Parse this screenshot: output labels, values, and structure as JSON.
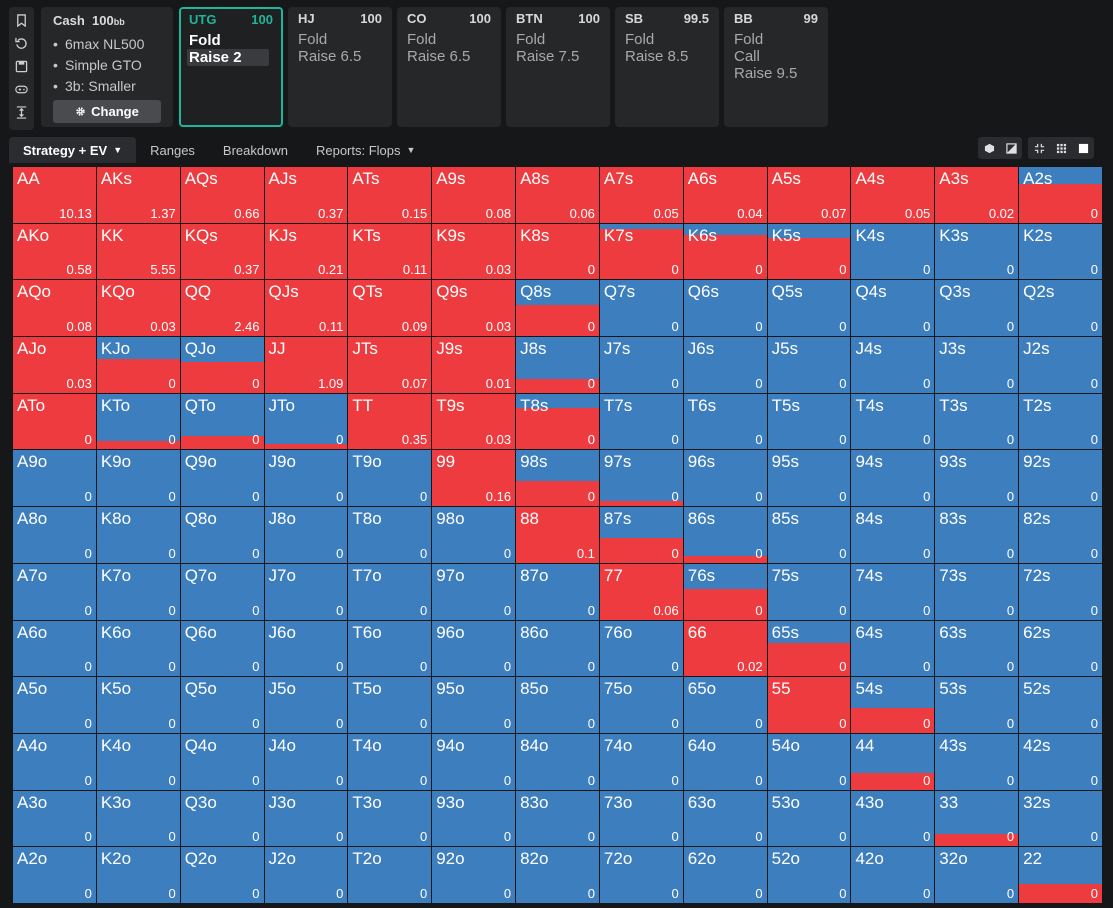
{
  "config": {
    "game": "Cash",
    "stack": "100",
    "stack_unit": "bb",
    "items": [
      "6max NL500",
      "Simple GTO",
      "3b: Smaller"
    ],
    "change_label": "Change"
  },
  "positions": [
    {
      "name": "UTG",
      "stack": "100",
      "actions": [
        "Fold",
        "Raise 2"
      ],
      "active": true,
      "selected": 1
    },
    {
      "name": "HJ",
      "stack": "100",
      "actions": [
        "Fold",
        "Raise 6.5"
      ]
    },
    {
      "name": "CO",
      "stack": "100",
      "actions": [
        "Fold",
        "Raise 6.5"
      ]
    },
    {
      "name": "BTN",
      "stack": "100",
      "actions": [
        "Fold",
        "Raise 7.5"
      ]
    },
    {
      "name": "SB",
      "stack": "99.5",
      "actions": [
        "Fold",
        "Raise 8.5"
      ]
    },
    {
      "name": "BB",
      "stack": "99",
      "actions": [
        "Fold",
        "Call",
        "Raise 9.5"
      ]
    }
  ],
  "tabs": [
    {
      "label": "Strategy + EV",
      "active": true,
      "dropdown": true
    },
    {
      "label": "Ranges"
    },
    {
      "label": "Breakdown"
    },
    {
      "label": "Reports: Flops",
      "dropdown": true
    }
  ],
  "colors": {
    "raise": "#ee3b3f",
    "fold": "#3d7ebf",
    "accent": "#1fb59a"
  },
  "grid": {
    "hands": [
      [
        "AA",
        "AKs",
        "AQs",
        "AJs",
        "ATs",
        "A9s",
        "A8s",
        "A7s",
        "A6s",
        "A5s",
        "A4s",
        "A3s",
        "A2s"
      ],
      [
        "AKo",
        "KK",
        "KQs",
        "KJs",
        "KTs",
        "K9s",
        "K8s",
        "K7s",
        "K6s",
        "K5s",
        "K4s",
        "K3s",
        "K2s"
      ],
      [
        "AQo",
        "KQo",
        "QQ",
        "QJs",
        "QTs",
        "Q9s",
        "Q8s",
        "Q7s",
        "Q6s",
        "Q5s",
        "Q4s",
        "Q3s",
        "Q2s"
      ],
      [
        "AJo",
        "KJo",
        "QJo",
        "JJ",
        "JTs",
        "J9s",
        "J8s",
        "J7s",
        "J6s",
        "J5s",
        "J4s",
        "J3s",
        "J2s"
      ],
      [
        "ATo",
        "KTo",
        "QTo",
        "JTo",
        "TT",
        "T9s",
        "T8s",
        "T7s",
        "T6s",
        "T5s",
        "T4s",
        "T3s",
        "T2s"
      ],
      [
        "A9o",
        "K9o",
        "Q9o",
        "J9o",
        "T9o",
        "99",
        "98s",
        "97s",
        "96s",
        "95s",
        "94s",
        "93s",
        "92s"
      ],
      [
        "A8o",
        "K8o",
        "Q8o",
        "J8o",
        "T8o",
        "98o",
        "88",
        "87s",
        "86s",
        "85s",
        "84s",
        "83s",
        "82s"
      ],
      [
        "A7o",
        "K7o",
        "Q7o",
        "J7o",
        "T7o",
        "97o",
        "87o",
        "77",
        "76s",
        "75s",
        "74s",
        "73s",
        "72s"
      ],
      [
        "A6o",
        "K6o",
        "Q6o",
        "J6o",
        "T6o",
        "96o",
        "86o",
        "76o",
        "66",
        "65s",
        "64s",
        "63s",
        "62s"
      ],
      [
        "A5o",
        "K5o",
        "Q5o",
        "J5o",
        "T5o",
        "95o",
        "85o",
        "75o",
        "65o",
        "55",
        "54s",
        "53s",
        "52s"
      ],
      [
        "A4o",
        "K4o",
        "Q4o",
        "J4o",
        "T4o",
        "94o",
        "84o",
        "74o",
        "64o",
        "54o",
        "44",
        "43s",
        "42s"
      ],
      [
        "A3o",
        "K3o",
        "Q3o",
        "J3o",
        "T3o",
        "93o",
        "83o",
        "73o",
        "63o",
        "53o",
        "43o",
        "33",
        "32s"
      ],
      [
        "A2o",
        "K2o",
        "Q2o",
        "J2o",
        "T2o",
        "92o",
        "82o",
        "72o",
        "62o",
        "52o",
        "42o",
        "32o",
        "22"
      ]
    ],
    "ev": [
      [
        "10.13",
        "1.37",
        "0.66",
        "0.37",
        "0.15",
        "0.08",
        "0.06",
        "0.05",
        "0.04",
        "0.07",
        "0.05",
        "0.02",
        "0"
      ],
      [
        "0.58",
        "5.55",
        "0.37",
        "0.21",
        "0.11",
        "0.03",
        "0",
        "0",
        "0",
        "0",
        "0",
        "0",
        "0"
      ],
      [
        "0.08",
        "0.03",
        "2.46",
        "0.11",
        "0.09",
        "0.03",
        "0",
        "0",
        "0",
        "0",
        "0",
        "0",
        "0"
      ],
      [
        "0.03",
        "0",
        "0",
        "1.09",
        "0.07",
        "0.01",
        "0",
        "0",
        "0",
        "0",
        "0",
        "0",
        "0"
      ],
      [
        "0",
        "0",
        "0",
        "0",
        "0.35",
        "0.03",
        "0",
        "0",
        "0",
        "0",
        "0",
        "0",
        "0"
      ],
      [
        "0",
        "0",
        "0",
        "0",
        "0",
        "0.16",
        "0",
        "0",
        "0",
        "0",
        "0",
        "0",
        "0"
      ],
      [
        "0",
        "0",
        "0",
        "0",
        "0",
        "0",
        "0.1",
        "0",
        "0",
        "0",
        "0",
        "0",
        "0"
      ],
      [
        "0",
        "0",
        "0",
        "0",
        "0",
        "0",
        "0",
        "0.06",
        "0",
        "0",
        "0",
        "0",
        "0"
      ],
      [
        "0",
        "0",
        "0",
        "0",
        "0",
        "0",
        "0",
        "0",
        "0.02",
        "0",
        "0",
        "0",
        "0"
      ],
      [
        "0",
        "0",
        "0",
        "0",
        "0",
        "0",
        "0",
        "0",
        "0",
        "0",
        "0",
        "0",
        "0"
      ],
      [
        "0",
        "0",
        "0",
        "0",
        "0",
        "0",
        "0",
        "0",
        "0",
        "0",
        "0",
        "0",
        "0"
      ],
      [
        "0",
        "0",
        "0",
        "0",
        "0",
        "0",
        "0",
        "0",
        "0",
        "0",
        "0",
        "0",
        "0"
      ],
      [
        "0",
        "0",
        "0",
        "0",
        "0",
        "0",
        "0",
        "0",
        "0",
        "0",
        "0",
        "0",
        "0"
      ]
    ],
    "raise_freq": [
      [
        1,
        1,
        1,
        1,
        1,
        1,
        1,
        1,
        1,
        1,
        1,
        1,
        0.7
      ],
      [
        1,
        1,
        1,
        1,
        1,
        1,
        1,
        0.9,
        0.8,
        0.75,
        0,
        0,
        0
      ],
      [
        1,
        1,
        1,
        1,
        1,
        1,
        0.55,
        0,
        0,
        0,
        0,
        0,
        0
      ],
      [
        1,
        0.6,
        0.55,
        1,
        1,
        1,
        0.25,
        0,
        0,
        0,
        0,
        0,
        0
      ],
      [
        1,
        0.15,
        0.25,
        0.1,
        1,
        1,
        0.75,
        0,
        0,
        0,
        0,
        0,
        0
      ],
      [
        0,
        0,
        0,
        0,
        0,
        1,
        0.45,
        0.1,
        0,
        0,
        0,
        0,
        0
      ],
      [
        0,
        0,
        0,
        0,
        0,
        0,
        1,
        0.45,
        0.12,
        0,
        0,
        0,
        0
      ],
      [
        0,
        0,
        0,
        0,
        0,
        0,
        0,
        1,
        0.55,
        0,
        0,
        0,
        0
      ],
      [
        0,
        0,
        0,
        0,
        0,
        0,
        0,
        0,
        1,
        0.6,
        0,
        0,
        0
      ],
      [
        0,
        0,
        0,
        0,
        0,
        0,
        0,
        0,
        0,
        1,
        0.45,
        0,
        0
      ],
      [
        0,
        0,
        0,
        0,
        0,
        0,
        0,
        0,
        0,
        0,
        0.3,
        0,
        0
      ],
      [
        0,
        0,
        0,
        0,
        0,
        0,
        0,
        0,
        0,
        0,
        0,
        0.22,
        0
      ],
      [
        0,
        0,
        0,
        0,
        0,
        0,
        0,
        0,
        0,
        0,
        0,
        0,
        0.35
      ]
    ]
  }
}
